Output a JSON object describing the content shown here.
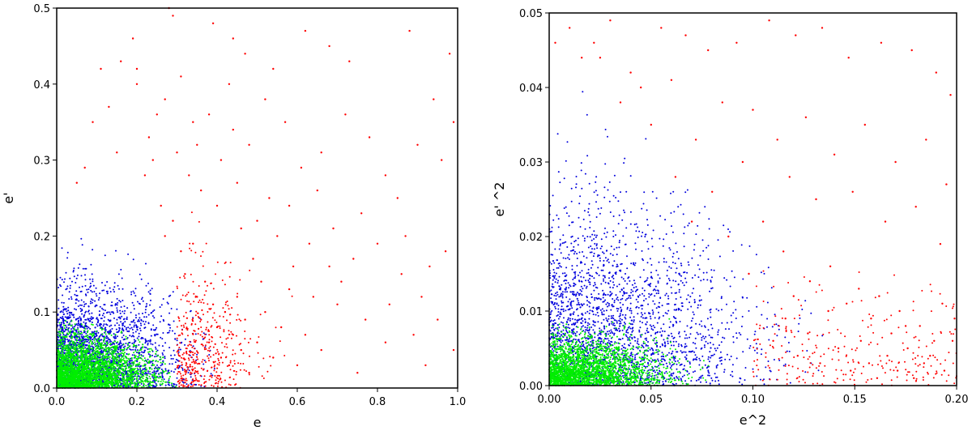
{
  "colors": {
    "red": "#ff0000",
    "blue": "#0000dd",
    "green": "#00ee00"
  },
  "chart_data": [
    {
      "type": "scatter",
      "xlabel": "e",
      "ylabel": "e'",
      "xlim": [
        0,
        1.0
      ],
      "ylim": [
        0,
        0.5
      ],
      "xticks": [
        "0.0",
        "0.2",
        "0.4",
        "0.6",
        "0.8",
        "1.0"
      ],
      "yticks": [
        "0.0",
        "0.1",
        "0.2",
        "0.3",
        "0.4",
        "0.5"
      ],
      "grid": false,
      "series": [
        {
          "color": "#ff0000",
          "description": "sparse points spanning the whole plot, densest near e≈0.3–0.45, e'<0.2",
          "points": [
            [
              0.28,
              0.5
            ],
            [
              0.39,
              0.48
            ],
            [
              0.44,
              0.46
            ],
            [
              0.47,
              0.44
            ],
            [
              0.54,
              0.42
            ],
            [
              0.62,
              0.47
            ],
            [
              0.68,
              0.45
            ],
            [
              0.73,
              0.43
            ],
            [
              0.88,
              0.47
            ],
            [
              0.98,
              0.44
            ],
            [
              0.29,
              0.49
            ],
            [
              0.19,
              0.46
            ],
            [
              0.2,
              0.42
            ],
            [
              0.16,
              0.43
            ],
            [
              0.2,
              0.4
            ],
            [
              0.25,
              0.36
            ],
            [
              0.34,
              0.35
            ],
            [
              0.43,
              0.4
            ],
            [
              0.48,
              0.32
            ],
            [
              0.52,
              0.38
            ],
            [
              0.57,
              0.35
            ],
            [
              0.61,
              0.29
            ],
            [
              0.66,
              0.31
            ],
            [
              0.72,
              0.36
            ],
            [
              0.78,
              0.33
            ],
            [
              0.82,
              0.28
            ],
            [
              0.85,
              0.25
            ],
            [
              0.9,
              0.32
            ],
            [
              0.94,
              0.38
            ],
            [
              0.97,
              0.18
            ],
            [
              0.3,
              0.31
            ],
            [
              0.33,
              0.28
            ],
            [
              0.36,
              0.26
            ],
            [
              0.4,
              0.24
            ],
            [
              0.45,
              0.27
            ],
            [
              0.5,
              0.22
            ],
            [
              0.55,
              0.2
            ],
            [
              0.58,
              0.24
            ],
            [
              0.63,
              0.19
            ],
            [
              0.69,
              0.21
            ],
            [
              0.74,
              0.17
            ],
            [
              0.8,
              0.19
            ],
            [
              0.86,
              0.15
            ],
            [
              0.91,
              0.12
            ],
            [
              0.95,
              0.09
            ],
            [
              0.99,
              0.05
            ],
            [
              0.92,
              0.03
            ],
            [
              0.82,
              0.06
            ],
            [
              0.77,
              0.09
            ],
            [
              0.7,
              0.11
            ],
            [
              0.26,
              0.24
            ],
            [
              0.27,
              0.2
            ],
            [
              0.29,
              0.22
            ],
            [
              0.31,
              0.18
            ],
            [
              0.32,
              0.15
            ],
            [
              0.34,
              0.19
            ],
            [
              0.35,
              0.12
            ],
            [
              0.36,
              0.09
            ],
            [
              0.37,
              0.14
            ],
            [
              0.38,
              0.06
            ],
            [
              0.39,
              0.11
            ],
            [
              0.4,
              0.08
            ],
            [
              0.41,
              0.04
            ],
            [
              0.42,
              0.1
            ],
            [
              0.43,
              0.03
            ],
            [
              0.44,
              0.07
            ],
            [
              0.45,
              0.12
            ],
            [
              0.46,
              0.05
            ],
            [
              0.47,
              0.09
            ],
            [
              0.48,
              0.02
            ],
            [
              0.5,
              0.06
            ],
            [
              0.52,
              0.1
            ],
            [
              0.54,
              0.04
            ],
            [
              0.56,
              0.08
            ],
            [
              0.58,
              0.13
            ],
            [
              0.6,
              0.03
            ],
            [
              0.62,
              0.07
            ],
            [
              0.64,
              0.12
            ],
            [
              0.66,
              0.05
            ],
            [
              0.68,
              0.16
            ],
            [
              0.22,
              0.28
            ],
            [
              0.24,
              0.3
            ],
            [
              0.23,
              0.33
            ],
            [
              0.27,
              0.38
            ],
            [
              0.31,
              0.41
            ],
            [
              0.35,
              0.32
            ],
            [
              0.38,
              0.36
            ],
            [
              0.41,
              0.3
            ],
            [
              0.44,
              0.34
            ],
            [
              0.46,
              0.21
            ],
            [
              0.49,
              0.17
            ],
            [
              0.51,
              0.14
            ],
            [
              0.53,
              0.25
            ],
            [
              0.59,
              0.16
            ],
            [
              0.65,
              0.26
            ],
            [
              0.71,
              0.14
            ],
            [
              0.76,
              0.23
            ],
            [
              0.83,
              0.11
            ],
            [
              0.87,
              0.2
            ],
            [
              0.93,
              0.16
            ],
            [
              0.13,
              0.37
            ],
            [
              0.15,
              0.31
            ],
            [
              0.11,
              0.42
            ],
            [
              0.09,
              0.35
            ],
            [
              0.07,
              0.29
            ],
            [
              0.05,
              0.27
            ],
            [
              0.96,
              0.3
            ],
            [
              0.99,
              0.35
            ],
            [
              0.89,
              0.07
            ],
            [
              0.75,
              0.02
            ]
          ]
        },
        {
          "color": "#0000dd",
          "description": "dense cloud near the origin, extending to e≈0.4 and e'≈0.2",
          "points": []
        },
        {
          "color": "#00ee00",
          "description": "densest core, e<0.3, e'<0.09",
          "points": []
        }
      ]
    },
    {
      "type": "scatter",
      "xlabel": "e^2",
      "ylabel": "e' ^2",
      "xlim": [
        0,
        0.2
      ],
      "ylim": [
        0,
        0.05
      ],
      "xticks": [
        "0.00",
        "0.05",
        "0.10",
        "0.15",
        "0.20"
      ],
      "yticks": [
        "0.00",
        "0.01",
        "0.02",
        "0.03",
        "0.04",
        "0.05"
      ],
      "grid": false,
      "series": [
        {
          "color": "#ff0000",
          "description": "sparse points, more frequent at e^2>0.1, e'^2<0.015",
          "points": [
            [
              0.003,
              0.046
            ],
            [
              0.01,
              0.048
            ],
            [
              0.016,
              0.044
            ],
            [
              0.022,
              0.046
            ],
            [
              0.03,
              0.049
            ],
            [
              0.055,
              0.048
            ],
            [
              0.067,
              0.047
            ],
            [
              0.078,
              0.045
            ],
            [
              0.092,
              0.046
            ],
            [
              0.108,
              0.049
            ],
            [
              0.121,
              0.047
            ],
            [
              0.134,
              0.048
            ],
            [
              0.147,
              0.044
            ],
            [
              0.163,
              0.046
            ],
            [
              0.178,
              0.045
            ],
            [
              0.19,
              0.042
            ],
            [
              0.197,
              0.039
            ],
            [
              0.06,
              0.041
            ],
            [
              0.085,
              0.038
            ],
            [
              0.1,
              0.037
            ],
            [
              0.112,
              0.033
            ],
            [
              0.126,
              0.036
            ],
            [
              0.14,
              0.031
            ],
            [
              0.155,
              0.035
            ],
            [
              0.17,
              0.03
            ],
            [
              0.185,
              0.033
            ],
            [
              0.195,
              0.027
            ],
            [
              0.072,
              0.033
            ],
            [
              0.095,
              0.03
            ],
            [
              0.118,
              0.028
            ],
            [
              0.131,
              0.025
            ],
            [
              0.149,
              0.026
            ],
            [
              0.165,
              0.022
            ],
            [
              0.18,
              0.024
            ],
            [
              0.192,
              0.019
            ],
            [
              0.105,
              0.022
            ],
            [
              0.115,
              0.018
            ],
            [
              0.128,
              0.014
            ],
            [
              0.138,
              0.016
            ],
            [
              0.146,
              0.011
            ],
            [
              0.152,
              0.013
            ],
            [
              0.158,
              0.009
            ],
            [
              0.162,
              0.012
            ],
            [
              0.168,
              0.007
            ],
            [
              0.172,
              0.01
            ],
            [
              0.176,
              0.005
            ],
            [
              0.182,
              0.008
            ],
            [
              0.187,
              0.004
            ],
            [
              0.193,
              0.011
            ],
            [
              0.198,
              0.006
            ],
            [
              0.11,
              0.006
            ],
            [
              0.116,
              0.009
            ],
            [
              0.122,
              0.004
            ],
            [
              0.127,
              0.007
            ],
            [
              0.133,
              0.003
            ],
            [
              0.137,
              0.01
            ],
            [
              0.142,
              0.005
            ],
            [
              0.148,
              0.002
            ],
            [
              0.153,
              0.006
            ],
            [
              0.157,
              0.003
            ],
            [
              0.161,
              0.001
            ],
            [
              0.166,
              0.004
            ],
            [
              0.171,
              0.002
            ],
            [
              0.175,
              0.008
            ],
            [
              0.179,
              0.001
            ],
            [
              0.184,
              0.003
            ],
            [
              0.189,
              0.006
            ],
            [
              0.194,
              0.002
            ],
            [
              0.199,
              0.009
            ],
            [
              0.12,
              0.012
            ],
            [
              0.098,
              0.015
            ],
            [
              0.088,
              0.02
            ],
            [
              0.08,
              0.026
            ],
            [
              0.07,
              0.022
            ],
            [
              0.062,
              0.028
            ],
            [
              0.05,
              0.035
            ],
            [
              0.04,
              0.042
            ],
            [
              0.035,
              0.038
            ],
            [
              0.045,
              0.04
            ],
            [
              0.025,
              0.044
            ]
          ]
        },
        {
          "color": "#0000dd",
          "description": "dense near origin, spreading along e^2 to ≈0.16",
          "points": []
        },
        {
          "color": "#00ee00",
          "description": "densest core, e^2<0.08, e'^2<0.009",
          "points": []
        }
      ]
    }
  ]
}
